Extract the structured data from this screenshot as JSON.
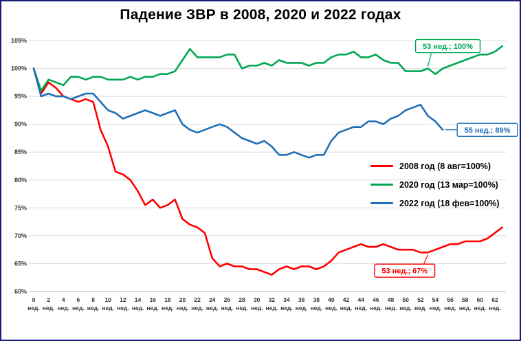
{
  "chart_data": {
    "type": "line",
    "title": "Падение ЗВР в 2008, 2020 и 2022 годах",
    "xlabel": "",
    "ylabel": "",
    "x_unit": "нед.",
    "x_start": 0,
    "x_end": 63,
    "xtick_step": 2,
    "ylim": [
      60,
      105
    ],
    "ytick_step": 5,
    "ytick_suffix": "%",
    "grid": "horizontal",
    "legend_position": "middle-right",
    "series": [
      {
        "name": "2008 год (8 авг=100%)",
        "color": "#FF0000",
        "values": [
          100,
          95.5,
          97.5,
          96.5,
          95,
          94.5,
          94,
          94.5,
          94,
          89,
          86,
          81.5,
          81,
          80,
          78,
          75.5,
          76.5,
          75,
          75.5,
          76.5,
          73,
          72,
          71.5,
          70.5,
          66,
          64.5,
          65,
          64.5,
          64.5,
          64,
          64,
          63.5,
          63,
          64,
          64.5,
          64,
          64.5,
          64.5,
          64,
          64.5,
          65.5,
          67,
          67.5,
          68,
          68.5,
          68,
          68,
          68.5,
          68,
          67.5,
          67.5,
          67.5,
          67,
          67,
          67.5,
          68,
          68.5,
          68.5,
          69,
          69,
          69,
          69.5,
          70.5,
          71.5
        ]
      },
      {
        "name": "2020 год (13 мар=100%)",
        "color": "#00A651",
        "values": [
          100,
          96,
          98,
          97.5,
          97,
          98.5,
          98.5,
          98,
          98.5,
          98.5,
          98,
          98,
          98,
          98.5,
          98,
          98.5,
          98.5,
          99,
          99,
          99.5,
          101.5,
          103.5,
          102,
          102,
          102,
          102,
          102.5,
          102.5,
          100,
          100.5,
          100.5,
          101,
          100.5,
          101.5,
          101,
          101,
          101,
          100.5,
          101,
          101,
          102,
          102.5,
          102.5,
          103,
          102,
          102,
          102.5,
          101.5,
          101,
          101,
          99.5,
          99.5,
          99.5,
          100,
          99,
          100,
          100.5,
          101,
          101.5,
          102,
          102.5,
          102.5,
          103,
          104
        ]
      },
      {
        "name": "2022 год (18 фев=100%)",
        "color": "#1F6FB8",
        "values": [
          100,
          95,
          95.5,
          95,
          95,
          94.5,
          95,
          95.5,
          95.5,
          94,
          92.5,
          92,
          91,
          91.5,
          92,
          92.5,
          92,
          91.5,
          92,
          92.5,
          90,
          89,
          88.5,
          89,
          89.5,
          90,
          89.5,
          88.5,
          87.5,
          87,
          86.5,
          87,
          86,
          84.5,
          84.5,
          85,
          84.5,
          84,
          84.5,
          84.5,
          87,
          88.5,
          89,
          89.5,
          89.5,
          90.5,
          90.5,
          90,
          91,
          91.5,
          92.5,
          93,
          93.5,
          91.5,
          90.5,
          89
        ]
      }
    ],
    "annotations": [
      {
        "label": "53 нед.; 100%",
        "week": 53,
        "value": 100,
        "series": "2020 год",
        "color": "#00A651",
        "placement": "above"
      },
      {
        "label": "55 нед.; 89%",
        "week": 55,
        "value": 89,
        "series": "2022 год",
        "color": "#1F6FB8",
        "placement": "right"
      },
      {
        "label": "53 нед.; 67%",
        "week": 53,
        "value": 67,
        "series": "2008 год",
        "color": "#FF0000",
        "placement": "below"
      }
    ]
  }
}
